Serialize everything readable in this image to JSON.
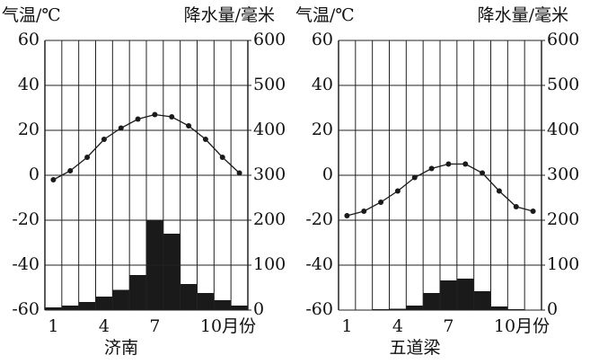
{
  "chart_data": [
    {
      "type": "climate",
      "title": "济南",
      "y_label": "气温/℃",
      "y2_label": "降水量/毫米",
      "categories": [
        "1",
        null,
        null,
        "4",
        null,
        null,
        "7",
        null,
        null,
        "10月份",
        null,
        null
      ],
      "ylim": [
        -60,
        60
      ],
      "yticks": [
        -60,
        -40,
        -20,
        0,
        20,
        40,
        60
      ],
      "y2lim": [
        0,
        600
      ],
      "y2ticks": [
        0,
        100,
        200,
        300,
        400,
        500,
        600
      ],
      "grid": true,
      "series": [
        {
          "type": "bar",
          "axis": "y2",
          "color": "#1a1a1a",
          "values": [
            6,
            10,
            18,
            30,
            45,
            78,
            200,
            170,
            58,
            38,
            22,
            10
          ]
        },
        {
          "type": "line",
          "color": "#1a1a1a",
          "values": [
            -2,
            2,
            8,
            16,
            21,
            25,
            27,
            26,
            22,
            16,
            8,
            1
          ]
        }
      ]
    },
    {
      "type": "climate",
      "title": "五道梁",
      "y_label": "气温/℃",
      "y2_label": "降水量/毫米",
      "categories": [
        "1",
        null,
        null,
        "4",
        null,
        null,
        "7",
        null,
        null,
        "10月份",
        null,
        null
      ],
      "ylim": [
        -60,
        60
      ],
      "yticks": [
        -60,
        -40,
        -20,
        0,
        20,
        40,
        60
      ],
      "y2lim": [
        0,
        600
      ],
      "y2ticks": [
        0,
        100,
        200,
        300,
        400,
        500,
        600
      ],
      "grid": true,
      "series": [
        {
          "type": "bar",
          "axis": "y2",
          "color": "#1a1a1a",
          "values": [
            1,
            1,
            2,
            3,
            10,
            38,
            66,
            70,
            42,
            8,
            2,
            1
          ]
        },
        {
          "type": "line",
          "color": "#1a1a1a",
          "values": [
            -18,
            -16,
            -12,
            -7,
            -1,
            3,
            5,
            5,
            1,
            -7,
            -14,
            -16
          ]
        }
      ]
    }
  ]
}
